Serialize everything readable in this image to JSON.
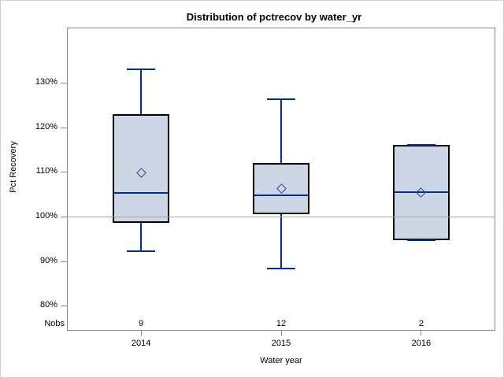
{
  "figure_title": "Distribution of pctrecov by water_yr",
  "chart_data": {
    "type": "boxplot",
    "title": "Distribution of pctrecov by water_yr",
    "xlabel": "Water year",
    "ylabel": "Pct Recovery",
    "categories": [
      "2014",
      "2015",
      "2016"
    ],
    "nobs_label": "Nobs",
    "nobs": [
      "9",
      "12",
      "2"
    ],
    "yticks": [
      130,
      120,
      110,
      100,
      90,
      80
    ],
    "ytick_suffix": "%",
    "ylim": [
      77,
      137
    ],
    "reference_line": 100,
    "grid": "off",
    "legend": "none",
    "boxes": [
      {
        "category": "2014",
        "min": 92.3,
        "q1": 98.5,
        "median": 105.3,
        "q3": 123,
        "max": 133,
        "mean": 109.8,
        "nobs": 9
      },
      {
        "category": "2015",
        "min": 88.3,
        "q1": 100.5,
        "median": 104.8,
        "q3": 112,
        "max": 126.2,
        "mean": 106.2,
        "nobs": 12
      },
      {
        "category": "2016",
        "min": 94.7,
        "q1": 94.7,
        "median": 105.4,
        "q3": 116,
        "max": 116,
        "mean": 105.4,
        "nobs": 2
      }
    ],
    "colors": {
      "box_fill": "#ccd6e4",
      "box_border": "#000000",
      "whisker_line": "#002e8a",
      "median_line": "#002e8a",
      "mean_marker": "#2b3f9e",
      "reference_line": "#a8a8a8",
      "axis": "#858585",
      "text": "#000000"
    }
  }
}
